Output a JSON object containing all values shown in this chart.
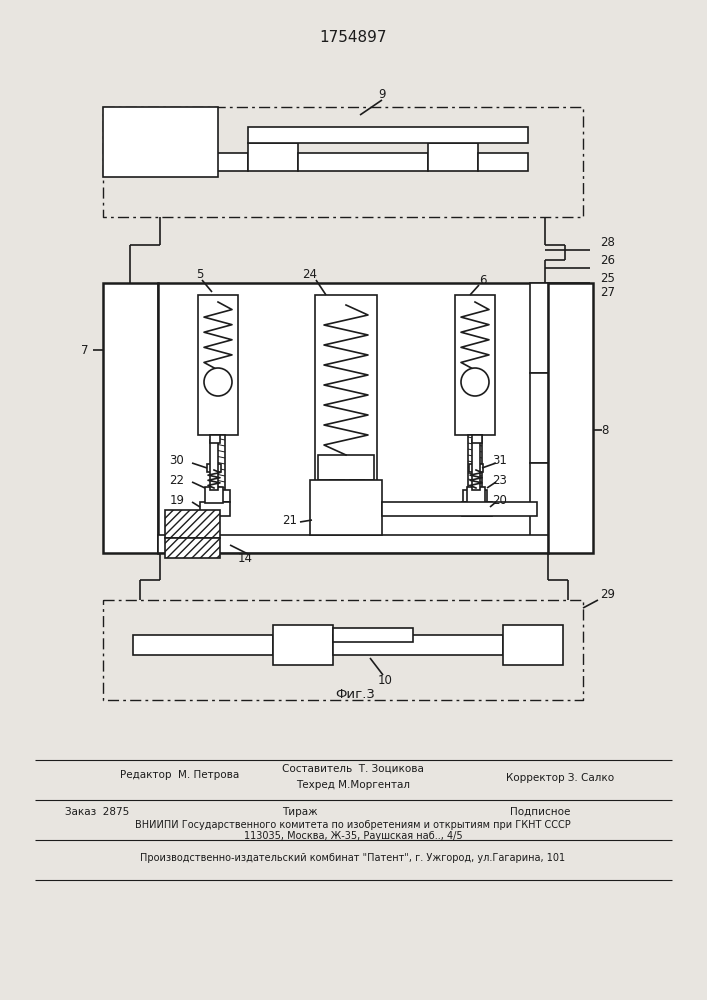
{
  "patent_number": "1754897",
  "bg_color": "#e8e5e0",
  "line_color": "#1a1a1a",
  "footer": {
    "editor": "Редактор  М. Петрова",
    "composer": "Составитель  Т. Зоцикова",
    "techred": "Техред М.Моргентал",
    "corrector": "Корректор З. Салко",
    "order": "Заказ  2875",
    "tirazh": "Тираж",
    "podpisnoe": "Подписное",
    "vniip": "ВНИИПИ Государственного комитета по изобретениям и открытиям при ГКНТ СССР",
    "address": "113035, Москва, Ж-35, Раушская наб.., 4/5",
    "patent_plant": "Производственно-издательский комбинат \"Патент\", г. Ужгород, ул.Гагарина, 101"
  }
}
